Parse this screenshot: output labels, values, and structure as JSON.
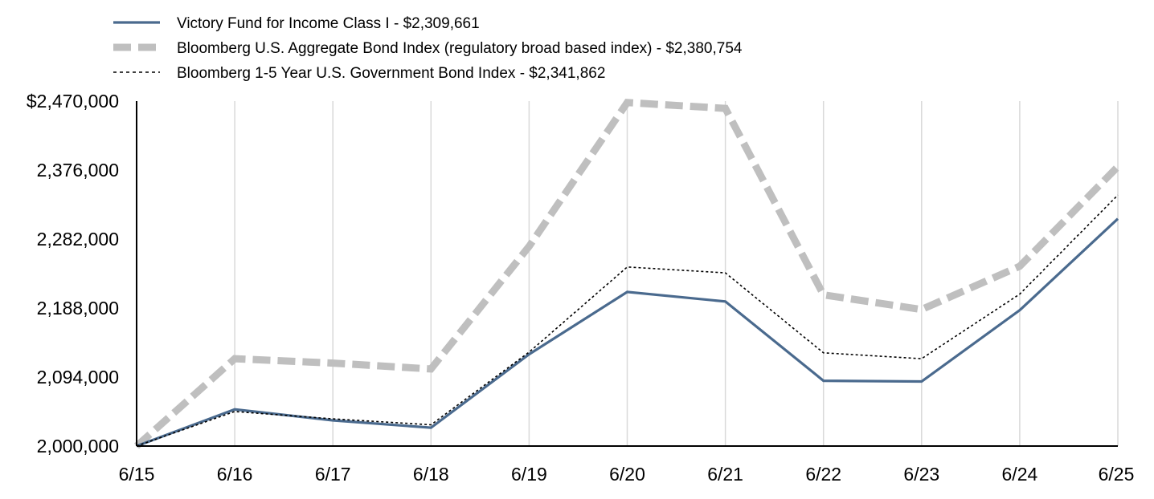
{
  "chart_data": {
    "type": "line",
    "categories": [
      "6/15",
      "6/16",
      "6/17",
      "6/18",
      "6/19",
      "6/20",
      "6/21",
      "6/22",
      "6/23",
      "6/24",
      "6/25"
    ],
    "ylim": [
      2000000,
      2470000
    ],
    "y_ticks": [
      2000000,
      2094000,
      2188000,
      2282000,
      2376000,
      2470000
    ],
    "y_tick_labels": [
      "2,000,000",
      "2,094,000",
      "2,188,000",
      "2,282,000",
      "2,376,000",
      "$2,470,000"
    ],
    "grid": "vertical",
    "legend_position": "top-left",
    "series": [
      {
        "name": "Victory Fund for Income Class I - $2,309,661",
        "style": "solid",
        "color": "#4a6a8e",
        "values": [
          2000000,
          2050000,
          2035000,
          2025000,
          2125000,
          2210000,
          2197000,
          2089000,
          2088000,
          2185000,
          2309661
        ]
      },
      {
        "name": "Bloomberg U.S. Aggregate Bond Index (regulatory broad based index) - $2,380,754",
        "style": "thick-dashed",
        "color": "#bfbfbf",
        "values": [
          2000000,
          2119000,
          2113000,
          2105000,
          2272000,
          2468000,
          2460000,
          2206000,
          2186000,
          2245000,
          2380754
        ]
      },
      {
        "name": "Bloomberg 1-5 Year U.S. Government Bond Index - $2,341,862",
        "style": "dotted",
        "color": "#000000",
        "values": [
          2000000,
          2047000,
          2037000,
          2029000,
          2128000,
          2244000,
          2236000,
          2127000,
          2119000,
          2207000,
          2341862
        ]
      }
    ]
  }
}
